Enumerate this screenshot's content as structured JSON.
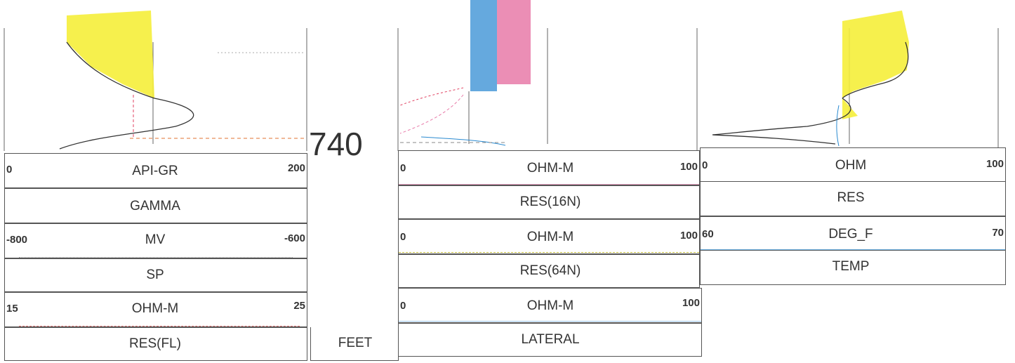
{
  "colors": {
    "gamma_fill": "#f5ee3a",
    "res16_fill": "#e87aa8",
    "res64_fill": "#4a9ad8",
    "res_fill": "#f5ee3a",
    "lateral": "#2a8ad0",
    "temp": "#2a8ad0",
    "curve": "#333333"
  },
  "depth": {
    "value": "740",
    "unit": "FEET"
  },
  "left_track": {
    "gamma": {
      "min": "0",
      "unit": "API-GR",
      "max": "200",
      "name": "GAMMA"
    },
    "sp": {
      "min": "-800",
      "unit": "MV",
      "max": "-600",
      "name": "SP"
    },
    "res_fl": {
      "min": "15",
      "unit": "OHM-M",
      "max": "25",
      "name": "RES(FL)"
    }
  },
  "middle_track": {
    "res16": {
      "min": "0",
      "unit": "OHM-M",
      "max": "100",
      "name": "RES(16N)"
    },
    "res64": {
      "min": "0",
      "unit": "OHM-M",
      "max": "100",
      "name": "RES(64N)"
    },
    "lateral": {
      "min": "0",
      "unit": "OHM-M",
      "max": "100",
      "name": "LATERAL"
    }
  },
  "right_track": {
    "res": {
      "min": "0",
      "unit": "OHM",
      "max": "100",
      "name": "RES"
    },
    "temp": {
      "min": "60",
      "unit": "DEG_F",
      "max": "70",
      "name": "TEMP"
    }
  }
}
